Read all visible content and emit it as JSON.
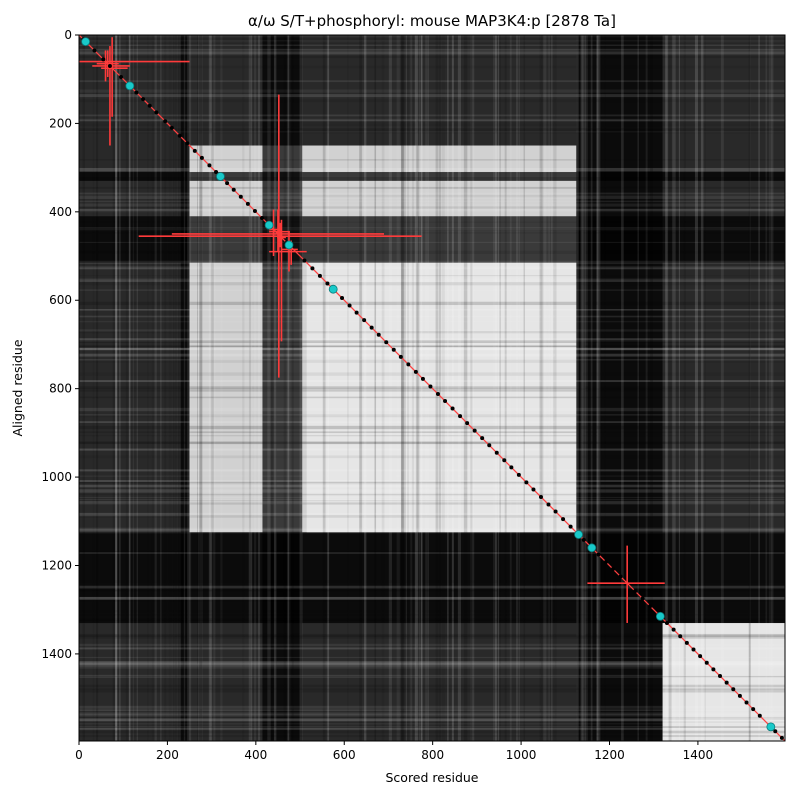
{
  "chart_data": {
    "type": "heatmap",
    "title": "α/ω S/T+phosphoryl: mouse MAP3K4:p [2878 Ta]",
    "xlabel": "Scored residue",
    "ylabel": "Aligned residue",
    "xlim": [
      0,
      1597
    ],
    "ylim": [
      1597,
      0
    ],
    "y_inverted": true,
    "grid": false,
    "xticks": [
      0,
      200,
      400,
      600,
      800,
      1000,
      1200,
      1400
    ],
    "yticks": [
      0,
      200,
      400,
      600,
      800,
      1000,
      1200,
      1400
    ],
    "heatmap_blocks": [
      {
        "x": [
          0,
          1597
        ],
        "y": [
          0,
          1597
        ],
        "intensity": 0.16
      },
      {
        "x": [
          250,
          1125
        ],
        "y": [
          250,
          1125
        ],
        "intensity": 0.82
      },
      {
        "x": [
          515,
          1125
        ],
        "y": [
          515,
          1125
        ],
        "intensity": 0.9
      },
      {
        "x": [
          1320,
          1597
        ],
        "y": [
          1330,
          1597
        ],
        "intensity": 0.9
      }
    ],
    "dark_bands": [
      {
        "axis": "y",
        "from": 310,
        "to": 330
      },
      {
        "axis": "y",
        "from": 410,
        "to": 515
      },
      {
        "axis": "y",
        "from": 1125,
        "to": 1330
      },
      {
        "axis": "x",
        "from": 230,
        "to": 250
      },
      {
        "axis": "x",
        "from": 415,
        "to": 505
      },
      {
        "axis": "x",
        "from": 1125,
        "to": 1320
      }
    ],
    "diagonal": {
      "from": 0,
      "to": 1597,
      "color": "#ff4040"
    },
    "black_points": [
      10,
      35,
      55,
      70,
      95,
      130,
      145,
      160,
      175,
      195,
      210,
      228,
      245,
      262,
      278,
      295,
      310,
      335,
      350,
      366,
      382,
      398,
      414,
      430,
      470,
      510,
      528,
      545,
      562,
      595,
      612,
      628,
      645,
      662,
      678,
      695,
      712,
      728,
      745,
      762,
      778,
      795,
      812,
      828,
      845,
      862,
      878,
      895,
      912,
      928,
      945,
      962,
      978,
      995,
      1012,
      1028,
      1045,
      1062,
      1078,
      1095,
      1112,
      1142,
      1175,
      1192,
      1208,
      1225,
      1258,
      1275,
      1292,
      1330,
      1345,
      1360,
      1375,
      1390,
      1405,
      1420,
      1435,
      1450,
      1465,
      1480,
      1495,
      1510,
      1525,
      1540,
      1575,
      1590
    ],
    "cyan_points": [
      15,
      115,
      320,
      430,
      475,
      575,
      1130,
      1160,
      1315,
      1565
    ],
    "error_bars": [
      {
        "x": 65,
        "y": 60,
        "xerr": [
          65,
          185
        ],
        "yerr": [
          25,
          35
        ]
      },
      {
        "x": 70,
        "y": 70,
        "xerr": [
          40,
          45
        ],
        "yerr": [
          45,
          180
        ]
      },
      {
        "x": 75,
        "y": 75,
        "xerr": [
          25,
          35
        ],
        "yerr": [
          70,
          110
        ]
      },
      {
        "x": 60,
        "y": 65,
        "xerr": [
          20,
          30
        ],
        "yerr": [
          30,
          40
        ]
      },
      {
        "x": 450,
        "y": 450,
        "xerr": [
          240,
          240
        ],
        "yerr": [
          55,
          40
        ]
      },
      {
        "x": 455,
        "y": 455,
        "xerr": [
          320,
          320
        ],
        "yerr": [
          30,
          25
        ]
      },
      {
        "x": 452,
        "y": 445,
        "xerr": [
          22,
          25
        ],
        "yerr": [
          310,
          330
        ]
      },
      {
        "x": 458,
        "y": 458,
        "xerr": [
          10,
          10
        ],
        "yerr": [
          40,
          235
        ]
      },
      {
        "x": 440,
        "y": 440,
        "xerr": [
          10,
          10
        ],
        "yerr": [
          45,
          60
        ]
      },
      {
        "x": 480,
        "y": 490,
        "xerr": [
          50,
          35
        ],
        "yerr": [
          25,
          30
        ]
      },
      {
        "x": 475,
        "y": 485,
        "xerr": [
          18,
          20
        ],
        "yerr": [
          40,
          50
        ]
      },
      {
        "x": 1240,
        "y": 1240,
        "xerr": [
          90,
          85
        ],
        "yerr": [
          85,
          90
        ]
      }
    ]
  }
}
